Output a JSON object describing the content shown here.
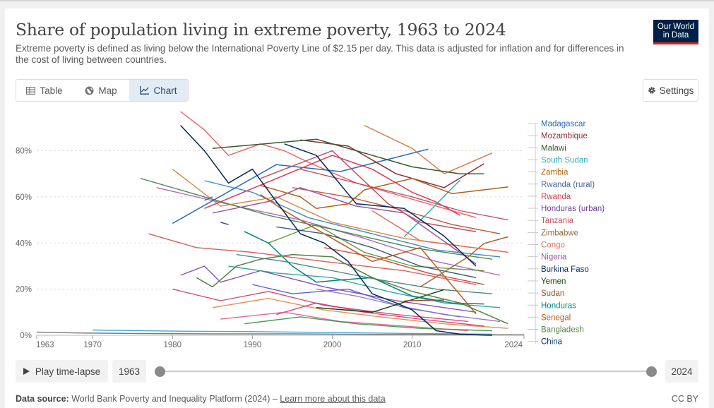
{
  "title": "Share of population living in extreme poverty, 1963 to 2024",
  "subtitle": "Extreme poverty is defined as living below the International Poverty Line of $2.15 per day. This data is adjusted for inflation and for differences in the cost of living between countries.",
  "logo": {
    "line1": "Our World",
    "line2": "in Data"
  },
  "tabs": [
    {
      "label": "Table",
      "icon": "table-icon"
    },
    {
      "label": "Map",
      "icon": "globe-icon"
    },
    {
      "label": "Chart",
      "icon": "line-chart-icon",
      "active": true
    }
  ],
  "settings_label": "Settings",
  "timeline": {
    "play_label": "Play time-lapse",
    "start_year": "1963",
    "end_year": "2024"
  },
  "footer": {
    "source_label": "Data source:",
    "source_text": "World Bank Poverty and Inequality Platform (2024) –",
    "link_text": "Learn more about this data",
    "license": "CC BY"
  },
  "chart_data": {
    "type": "line",
    "xlim": [
      1963,
      2024
    ],
    "ylim": [
      0,
      97
    ],
    "x_ticks": [
      "1963",
      "1970",
      "1980",
      "1990",
      "2000",
      "2010",
      "2024"
    ],
    "y_ticks": [
      "0%",
      "20%",
      "40%",
      "60%",
      "80%"
    ],
    "grid": "horizontal",
    "series": [
      {
        "name": "Madagascar",
        "color": "#286bbb",
        "points": [
          [
            1980,
            48.5
          ],
          [
            1993,
            74
          ],
          [
            2001,
            71
          ],
          [
            2012,
            80.7
          ]
        ]
      },
      {
        "name": "Mozambique",
        "color": "#883039",
        "points": [
          [
            1996,
            84.7
          ],
          [
            2002,
            82
          ],
          [
            2008,
            70
          ],
          [
            2014,
            64
          ],
          [
            2019,
            74.4
          ]
        ]
      },
      {
        "name": "Malawi",
        "color": "#3a5a2c",
        "points": [
          [
            1985,
            81
          ],
          [
            1998,
            85
          ],
          [
            2004,
            79
          ],
          [
            2010,
            73
          ],
          [
            2016,
            70
          ],
          [
            2019,
            70
          ]
        ]
      },
      {
        "name": "South Sudan",
        "color": "#38aaba",
        "points": [
          [
            2009,
            42.7
          ],
          [
            2016,
            67.3
          ]
        ]
      },
      {
        "name": "Zambia",
        "color": "#b16214",
        "points": [
          [
            1991,
            65
          ],
          [
            1996,
            60
          ],
          [
            1998,
            55
          ],
          [
            2002,
            57
          ],
          [
            2004,
            63
          ],
          [
            2010,
            68
          ],
          [
            2015,
            61.4
          ],
          [
            2022,
            64.3
          ]
        ]
      },
      {
        "name": "Rwanda (rural)",
        "color": "#4c6a9c",
        "points": [
          [
            1984,
            58.5
          ],
          [
            1985,
            60
          ]
        ]
      },
      {
        "name": "Rwanda",
        "color": "#d73c50",
        "points": [
          [
            1984,
            55
          ],
          [
            2000,
            78
          ],
          [
            2005,
            72
          ],
          [
            2010,
            62
          ],
          [
            2013,
            57.8
          ],
          [
            2016,
            52
          ]
        ]
      },
      {
        "name": "Honduras (urban)",
        "color": "#6d3e91",
        "points": [
          [
            1986,
            49
          ],
          [
            1987,
            48
          ]
        ]
      },
      {
        "name": "Tanzania",
        "color": "#c15065",
        "points": [
          [
            1991,
            68
          ],
          [
            2000,
            80
          ],
          [
            2007,
            57
          ],
          [
            2011,
            49
          ],
          [
            2018,
            44.9
          ]
        ]
      },
      {
        "name": "Zimbabwe",
        "color": "#996d39",
        "points": [
          [
            2011,
            21
          ],
          [
            2017,
            34
          ],
          [
            2019,
            39.8
          ],
          [
            2022,
            42.7
          ]
        ]
      },
      {
        "name": "Congo",
        "color": "#e56e5a",
        "points": [
          [
            2005,
            54
          ],
          [
            2011,
            41
          ],
          [
            2022,
            36
          ]
        ]
      },
      {
        "name": "Nigeria",
        "color": "#a2559c",
        "points": [
          [
            1985,
            53
          ],
          [
            1992,
            58
          ],
          [
            1996,
            64
          ],
          [
            2003,
            56
          ],
          [
            2009,
            53
          ],
          [
            2018,
            30.9
          ]
        ]
      },
      {
        "name": "Burkina Faso",
        "color": "#00295b",
        "points": [
          [
            1994,
            83
          ],
          [
            1998,
            78
          ],
          [
            2003,
            57
          ],
          [
            2009,
            55
          ],
          [
            2014,
            43
          ],
          [
            2018,
            30
          ]
        ]
      },
      {
        "name": "Yemen",
        "color": "#18470f",
        "points": [
          [
            1998,
            12
          ],
          [
            2005,
            10
          ],
          [
            2014,
            19.8
          ]
        ]
      },
      {
        "name": "Sudan",
        "color": "#9a5129",
        "points": [
          [
            2009,
            14.9
          ],
          [
            2014,
            15.3
          ]
        ]
      },
      {
        "name": "Honduras",
        "color": "#00847e",
        "points": [
          [
            1989,
            45
          ],
          [
            1992,
            40
          ],
          [
            1995,
            30
          ],
          [
            1998,
            23
          ],
          [
            2001,
            24
          ],
          [
            2005,
            25
          ],
          [
            2010,
            17
          ],
          [
            2015,
            14
          ],
          [
            2019,
            13.6
          ]
        ]
      },
      {
        "name": "Senegal",
        "color": "#c05917",
        "points": [
          [
            1991,
            61
          ],
          [
            1994,
            54
          ],
          [
            2001,
            40
          ],
          [
            2005,
            32
          ],
          [
            2011,
            38
          ],
          [
            2018,
            9.3
          ]
        ]
      },
      {
        "name": "Bangladesh",
        "color": "#578145",
        "points": [
          [
            1983,
            25
          ],
          [
            1985,
            21
          ],
          [
            1988,
            30
          ],
          [
            1991,
            33
          ],
          [
            1995,
            35
          ],
          [
            2000,
            34
          ],
          [
            2005,
            25
          ],
          [
            2010,
            19
          ],
          [
            2016,
            14
          ],
          [
            2022,
            5
          ]
        ]
      },
      {
        "name": "China",
        "color": "#00295b",
        "points": [
          [
            1981,
            91
          ],
          [
            1984,
            80
          ],
          [
            1987,
            66
          ],
          [
            1990,
            72
          ],
          [
            1993,
            58
          ],
          [
            1996,
            44
          ],
          [
            1999,
            40
          ],
          [
            2002,
            32
          ],
          [
            2005,
            18
          ],
          [
            2008,
            14
          ],
          [
            2010,
            11
          ],
          [
            2013,
            2
          ],
          [
            2016,
            0.5
          ],
          [
            2019,
            0.1
          ],
          [
            2020,
            0
          ]
        ]
      }
    ],
    "background_series": [
      {
        "color": "#e55050",
        "points": [
          [
            1981,
            97
          ],
          [
            1984,
            89
          ],
          [
            1987,
            78
          ],
          [
            1991,
            83
          ],
          [
            1994,
            80
          ],
          [
            1997,
            75
          ],
          [
            2003,
            66
          ],
          [
            2011,
            58
          ],
          [
            2018,
            51
          ]
        ]
      },
      {
        "color": "#d14d4d",
        "points": [
          [
            1977,
            44
          ],
          [
            1983,
            38
          ],
          [
            1990,
            36
          ],
          [
            1999,
            32
          ],
          [
            2009,
            28
          ],
          [
            2018,
            22
          ]
        ]
      },
      {
        "color": "#a55bb3",
        "points": [
          [
            1978,
            64
          ],
          [
            1988,
            56
          ],
          [
            1996,
            50
          ],
          [
            2004,
            42
          ],
          [
            2013,
            32
          ],
          [
            2021,
            26
          ]
        ]
      },
      {
        "color": "#3a7d44",
        "points": [
          [
            1976,
            68
          ],
          [
            1984,
            60
          ],
          [
            1992,
            52
          ],
          [
            2000,
            46
          ],
          [
            2010,
            38
          ],
          [
            2020,
            33
          ]
        ]
      },
      {
        "color": "#d77a2a",
        "points": [
          [
            1980,
            72
          ],
          [
            1986,
            56
          ],
          [
            1993,
            60
          ],
          [
            2000,
            49
          ],
          [
            2009,
            42
          ],
          [
            2022,
            36
          ]
        ]
      },
      {
        "color": "#2b7fc0",
        "points": [
          [
            1984,
            67
          ],
          [
            1990,
            62
          ],
          [
            1997,
            51
          ],
          [
            2005,
            44
          ],
          [
            2013,
            37
          ],
          [
            2021,
            34
          ]
        ]
      },
      {
        "color": "#7a3fb0",
        "points": [
          [
            1981,
            26
          ],
          [
            1984,
            30
          ],
          [
            1986,
            23
          ],
          [
            1991,
            28
          ],
          [
            1999,
            21
          ],
          [
            2008,
            15
          ],
          [
            2018,
            10
          ]
        ]
      },
      {
        "color": "#c83a6e",
        "points": [
          [
            1980,
            20
          ],
          [
            1986,
            15
          ],
          [
            1992,
            19
          ],
          [
            1999,
            13
          ],
          [
            2008,
            9
          ],
          [
            2017,
            6
          ]
        ]
      },
      {
        "color": "#1f9c8f",
        "points": [
          [
            1987,
            30
          ],
          [
            1993,
            27
          ],
          [
            2000,
            25
          ],
          [
            2007,
            19
          ],
          [
            2014,
            14
          ],
          [
            2021,
            12
          ]
        ]
      },
      {
        "color": "#e0843b",
        "points": [
          [
            1985,
            12
          ],
          [
            1992,
            16
          ],
          [
            1999,
            11
          ],
          [
            2006,
            8
          ],
          [
            2014,
            5
          ],
          [
            2022,
            3
          ]
        ]
      },
      {
        "color": "#4a56c9",
        "points": [
          [
            1990,
            22
          ],
          [
            1995,
            18
          ],
          [
            2002,
            20
          ],
          [
            2009,
            12
          ],
          [
            2016,
            8
          ]
        ]
      },
      {
        "color": "#b7472a",
        "points": [
          [
            1995,
            64
          ],
          [
            2002,
            60
          ],
          [
            2009,
            54
          ],
          [
            2015,
            48
          ],
          [
            2021,
            44
          ]
        ]
      },
      {
        "color": "#5a8c2e",
        "points": [
          [
            1992,
            40
          ],
          [
            1998,
            48
          ],
          [
            2004,
            36
          ],
          [
            2010,
            30
          ],
          [
            2019,
            28
          ]
        ]
      },
      {
        "color": "#d1327c",
        "points": [
          [
            1993,
            9
          ],
          [
            1998,
            14
          ],
          [
            2004,
            10
          ],
          [
            2011,
            7
          ],
          [
            2019,
            4
          ]
        ]
      },
      {
        "color": "#2a9ed8",
        "points": [
          [
            1970,
            2.3
          ],
          [
            1980,
            1.8
          ],
          [
            1990,
            1.6
          ],
          [
            2000,
            1.2
          ],
          [
            2010,
            0.8
          ],
          [
            2020,
            0.5
          ]
        ]
      },
      {
        "color": "#6b6b6b",
        "points": [
          [
            1963,
            1.4
          ],
          [
            1968,
            1.0
          ],
          [
            1975,
            0.8
          ],
          [
            1985,
            0.6
          ],
          [
            1995,
            0.6
          ],
          [
            2005,
            0.4
          ],
          [
            2015,
            0.3
          ],
          [
            2024,
            0.2
          ]
        ]
      },
      {
        "color": "#27476f",
        "points": [
          [
            1993,
            47
          ],
          [
            1999,
            44
          ],
          [
            2005,
            38
          ],
          [
            2011,
            30
          ],
          [
            2018,
            25
          ]
        ]
      },
      {
        "color": "#d86a2f",
        "points": [
          [
            2004,
            91
          ],
          [
            2010,
            81
          ],
          [
            2014,
            70
          ],
          [
            2020,
            79
          ]
        ]
      },
      {
        "color": "#b93f5d",
        "points": [
          [
            1996,
            72
          ],
          [
            2003,
            66
          ],
          [
            2010,
            60
          ],
          [
            2016,
            54
          ],
          [
            2022,
            50
          ]
        ]
      },
      {
        "color": "#377d7a",
        "points": [
          [
            1988,
            35
          ],
          [
            1994,
            32
          ],
          [
            2000,
            28
          ],
          [
            2006,
            24
          ],
          [
            2013,
            20
          ],
          [
            2020,
            18
          ]
        ]
      },
      {
        "color": "#8e6bbf",
        "points": [
          [
            1998,
            20
          ],
          [
            2003,
            17
          ],
          [
            2008,
            13
          ],
          [
            2014,
            9
          ],
          [
            2021,
            6
          ]
        ]
      },
      {
        "color": "#e05a8a",
        "points": [
          [
            1986,
            7
          ],
          [
            1994,
            10
          ],
          [
            2001,
            6
          ],
          [
            2009,
            4
          ],
          [
            2017,
            2
          ]
        ]
      },
      {
        "color": "#3b8f4b",
        "points": [
          [
            1989,
            5
          ],
          [
            1996,
            8
          ],
          [
            2003,
            5
          ],
          [
            2011,
            3
          ],
          [
            2020,
            2
          ]
        ]
      },
      {
        "color": "#c1392b",
        "points": [
          [
            1999,
            38
          ],
          [
            2005,
            34
          ],
          [
            2012,
            27
          ],
          [
            2019,
            22
          ]
        ]
      }
    ]
  }
}
